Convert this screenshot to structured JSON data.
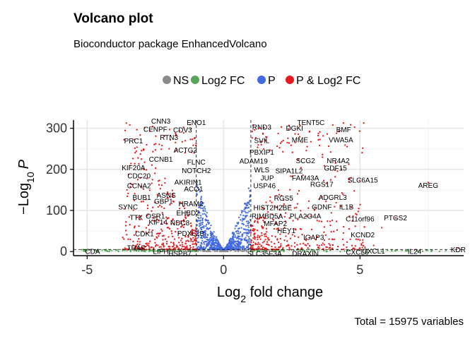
{
  "chart_data": {
    "type": "scatter",
    "title": "Volcano plot",
    "subtitle": "Bioconductor package EnhancedVolcano",
    "caption": "Total = 15975 variables",
    "xlabel": "Log2 fold change",
    "ylabel": "-Log10 P",
    "xlim": [
      -5.5,
      8.8
    ],
    "ylim": [
      -10,
      320
    ],
    "x_ticks": [
      -5,
      0,
      5
    ],
    "y_ticks": [
      0,
      100,
      200,
      300
    ],
    "grid": true,
    "legend_position": "top",
    "cutoffs": {
      "log2fc": [
        -1,
        1
      ],
      "p_line_y": 5
    },
    "series": [
      {
        "name": "NS",
        "color": "#8b8b8b"
      },
      {
        "name": "Log2 FC",
        "color": "#5aa55a"
      },
      {
        "name": "P",
        "color": "#4169e1"
      },
      {
        "name": "P & Log2 FC",
        "color": "#e41a1c"
      }
    ],
    "labels": [
      {
        "text": "CNN3",
        "x": -2.3,
        "y": 311
      },
      {
        "text": "ENO1",
        "x": -1.0,
        "y": 308
      },
      {
        "text": "CENPF",
        "x": -2.5,
        "y": 292
      },
      {
        "text": "CDV3",
        "x": -1.5,
        "y": 290
      },
      {
        "text": "RTN3",
        "x": -2.0,
        "y": 272
      },
      {
        "text": "PRC1",
        "x": -3.3,
        "y": 263
      },
      {
        "text": "ACTG2",
        "x": -1.4,
        "y": 241
      },
      {
        "text": "CCNB1",
        "x": -2.3,
        "y": 219
      },
      {
        "text": "FLNC",
        "x": -1.0,
        "y": 212
      },
      {
        "text": "NOTCH2",
        "x": -1.0,
        "y": 191
      },
      {
        "text": "KIF20A",
        "x": -3.3,
        "y": 198
      },
      {
        "text": "CDC20",
        "x": -3.1,
        "y": 178
      },
      {
        "text": "AKIRIN1",
        "x": -1.3,
        "y": 163
      },
      {
        "text": "CCNA2",
        "x": -3.1,
        "y": 154
      },
      {
        "text": "ACO1",
        "x": -1.1,
        "y": 146
      },
      {
        "text": "ASNS",
        "x": -2.1,
        "y": 131
      },
      {
        "text": "BUB1",
        "x": -3.0,
        "y": 126
      },
      {
        "text": "GBP1",
        "x": -2.2,
        "y": 116
      },
      {
        "text": "SYNC",
        "x": -3.5,
        "y": 103
      },
      {
        "text": "HRAM2",
        "x": -1.2,
        "y": 110
      },
      {
        "text": "TTK",
        "x": -3.2,
        "y": 77
      },
      {
        "text": "OSR1",
        "x": -2.5,
        "y": 80
      },
      {
        "text": "EHBD2",
        "x": -1.3,
        "y": 88
      },
      {
        "text": "KIF14",
        "x": -2.4,
        "y": 66
      },
      {
        "text": "NDC8",
        "x": -1.6,
        "y": 64
      },
      {
        "text": "PDXL2B",
        "x": -1.2,
        "y": 38
      },
      {
        "text": "CDK1",
        "x": -2.9,
        "y": 37
      },
      {
        "text": "TRAP",
        "x": -3.2,
        "y": 3
      },
      {
        "text": "LIPH",
        "x": -2.3,
        "y": -6
      },
      {
        "text": "HSPB7",
        "x": -1.6,
        "y": -11
      },
      {
        "text": "CDA",
        "x": -4.8,
        "y": -6
      },
      {
        "text": "RND3",
        "x": 1.4,
        "y": 297
      },
      {
        "text": "DGKI",
        "x": 2.6,
        "y": 294
      },
      {
        "text": "TENT5C",
        "x": 3.2,
        "y": 308
      },
      {
        "text": "BMF",
        "x": 4.4,
        "y": 291
      },
      {
        "text": "MME",
        "x": 2.8,
        "y": 266
      },
      {
        "text": "VWA5A",
        "x": 4.3,
        "y": 266
      },
      {
        "text": "SVIL",
        "x": 1.4,
        "y": 264
      },
      {
        "text": "PBXIP1",
        "x": 1.4,
        "y": 236
      },
      {
        "text": "SCG2",
        "x": 3.0,
        "y": 215
      },
      {
        "text": "NR4A2",
        "x": 4.2,
        "y": 215
      },
      {
        "text": "ADAM19",
        "x": 1.1,
        "y": 214
      },
      {
        "text": "GDF15",
        "x": 4.1,
        "y": 197
      },
      {
        "text": "WLS",
        "x": 1.4,
        "y": 193
      },
      {
        "text": "SIPA1L2",
        "x": 2.4,
        "y": 190
      },
      {
        "text": "JUP",
        "x": 1.6,
        "y": 173
      },
      {
        "text": "FAM43A",
        "x": 3.0,
        "y": 173
      },
      {
        "text": "SLC6A15",
        "x": 5.1,
        "y": 168
      },
      {
        "text": "RGS17",
        "x": 3.6,
        "y": 158
      },
      {
        "text": "USP46",
        "x": 1.5,
        "y": 154
      },
      {
        "text": "AREG",
        "x": 7.5,
        "y": 155
      },
      {
        "text": "ADGRL3",
        "x": 4.0,
        "y": 126
      },
      {
        "text": "RGS5",
        "x": 2.2,
        "y": 124
      },
      {
        "text": "GDNF",
        "x": 3.6,
        "y": 103
      },
      {
        "text": "IL1B",
        "x": 4.5,
        "y": 103
      },
      {
        "text": "HIST2H2BE",
        "x": 1.8,
        "y": 101
      },
      {
        "text": "RIMBD5A",
        "x": 1.6,
        "y": 80
      },
      {
        "text": "PLA2G4A",
        "x": 3.0,
        "y": 80
      },
      {
        "text": "C11orf96",
        "x": 5.0,
        "y": 73
      },
      {
        "text": "PTGS2",
        "x": 6.3,
        "y": 76
      },
      {
        "text": "MFAP2",
        "x": 1.9,
        "y": 62
      },
      {
        "text": "KCND2",
        "x": 5.1,
        "y": 35
      },
      {
        "text": "IGAP3",
        "x": 3.3,
        "y": 29
      },
      {
        "text": "HEY1",
        "x": 2.3,
        "y": 45
      },
      {
        "text": "SLC35F3A",
        "x": 1.5,
        "y": -11
      },
      {
        "text": "DRAXIN",
        "x": 3.0,
        "y": -11
      },
      {
        "text": "CXCL6",
        "x": 4.9,
        "y": -7
      },
      {
        "text": "CXCL1",
        "x": 5.5,
        "y": -5
      },
      {
        "text": "IL24",
        "x": 7.0,
        "y": -6
      },
      {
        "text": "KDR",
        "x": 8.6,
        "y": -1
      }
    ]
  }
}
